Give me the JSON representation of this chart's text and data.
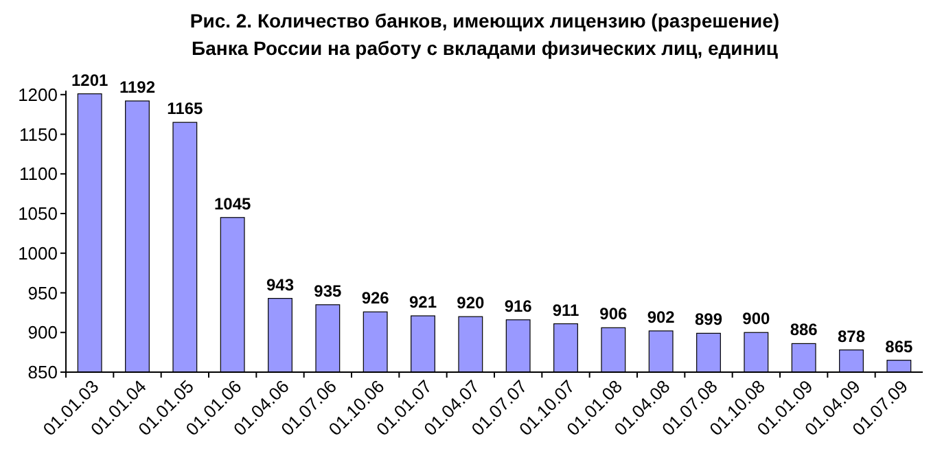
{
  "chart_data": {
    "type": "bar",
    "title": "Рис. 2. Количество банков, имеющих лицензию (разрешение)\nБанка России на работу с вкладами физических лиц, единиц",
    "categories": [
      "01.01.03",
      "01.01.04",
      "01.01.05",
      "01.01.06",
      "01.04.06",
      "01.07.06",
      "01.10.06",
      "01.01.07",
      "01.04.07",
      "01.07.07",
      "01.10.07",
      "01.01.08",
      "01.04.08",
      "01.07.08",
      "01.10.08",
      "01.01.09",
      "01.04.09",
      "01.07.09"
    ],
    "values": [
      1201,
      1192,
      1165,
      1045,
      943,
      935,
      926,
      921,
      920,
      916,
      911,
      906,
      902,
      899,
      900,
      886,
      878,
      865
    ],
    "color": "#9999ff",
    "ylim": [
      850,
      1205
    ],
    "yticks": [
      850,
      900,
      950,
      1000,
      1050,
      1100,
      1150,
      1200
    ],
    "data_labels": true,
    "grid": false
  }
}
